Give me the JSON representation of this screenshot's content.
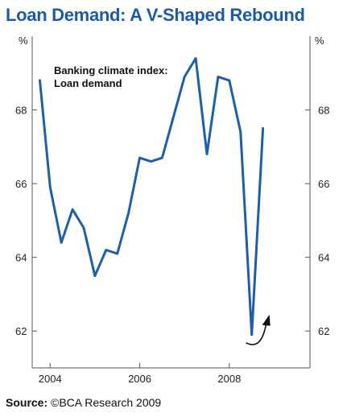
{
  "colors": {
    "title": "#1c5aa8",
    "line": "#1f5ea8",
    "axis": "#555555",
    "text": "#222222"
  },
  "chart_data": {
    "type": "line",
    "title": "Loan Demand: A V-Shaped Rebound",
    "y_unit_left": "%",
    "y_unit_right": "%",
    "annotation": [
      "Banking climate index:",
      "Loan demand"
    ],
    "source_label": "Source:",
    "source_text": "©BCA Research 2009",
    "xlim": [
      2003.6,
      2009.8
    ],
    "ylim": [
      61.0,
      70.0
    ],
    "x_ticks": [
      {
        "value": 2004,
        "label": "2004"
      },
      {
        "value": 2006,
        "label": "2006"
      },
      {
        "value": 2008,
        "label": "2008"
      }
    ],
    "y_ticks": [
      {
        "value": 62,
        "label": "62"
      },
      {
        "value": 64,
        "label": "64"
      },
      {
        "value": 66,
        "label": "66"
      },
      {
        "value": 68,
        "label": "68"
      }
    ],
    "grid": false,
    "legend": "none",
    "arrow": "curved upward arrow near the 2008 trough",
    "series": [
      {
        "values": [
          {
            "x": 2003.77,
            "y": 68.8
          },
          {
            "x": 2004.0,
            "y": 65.9
          },
          {
            "x": 2004.25,
            "y": 64.4
          },
          {
            "x": 2004.5,
            "y": 65.3
          },
          {
            "x": 2004.75,
            "y": 64.8
          },
          {
            "x": 2005.0,
            "y": 63.5
          },
          {
            "x": 2005.25,
            "y": 64.2
          },
          {
            "x": 2005.5,
            "y": 64.1
          },
          {
            "x": 2005.75,
            "y": 65.2
          },
          {
            "x": 2006.0,
            "y": 66.7
          },
          {
            "x": 2006.25,
            "y": 66.6
          },
          {
            "x": 2006.5,
            "y": 66.7
          },
          {
            "x": 2006.75,
            "y": 67.8
          },
          {
            "x": 2007.0,
            "y": 68.9
          },
          {
            "x": 2007.25,
            "y": 69.4
          },
          {
            "x": 2007.5,
            "y": 66.8
          },
          {
            "x": 2007.75,
            "y": 68.9
          },
          {
            "x": 2008.0,
            "y": 68.8
          },
          {
            "x": 2008.25,
            "y": 67.4
          },
          {
            "x": 2008.5,
            "y": 61.9
          },
          {
            "x": 2008.75,
            "y": 67.5
          }
        ]
      }
    ]
  }
}
